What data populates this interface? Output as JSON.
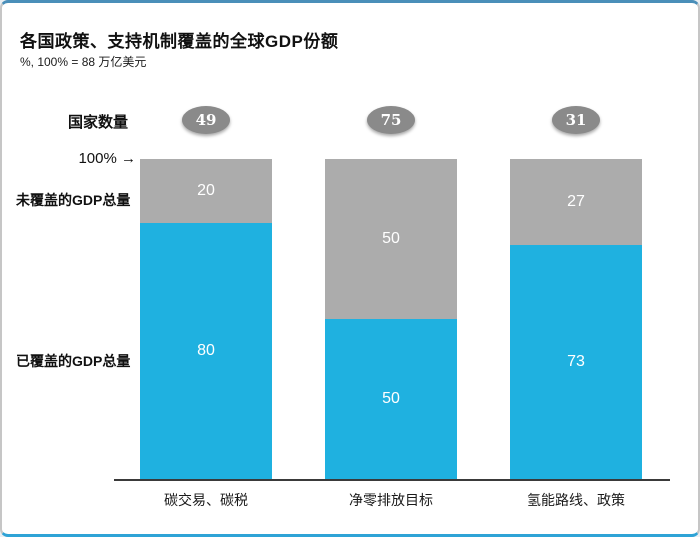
{
  "header": {
    "title": "各国政策、支持机制覆盖的全球GDP份额",
    "subtitle": "%, 100% = 88 万亿美元"
  },
  "countries": {
    "label": "国家数量"
  },
  "axis": {
    "top_label": "100%"
  },
  "side_labels": {
    "uncovered": "未覆盖的GDP总量",
    "covered": "已覆盖的GDP总量"
  },
  "colors": {
    "covered_blue": "#1FB1E0",
    "uncovered_gray": "#ACACAC",
    "badge_gray": "#8A8A8A",
    "axis_line": "#3A3A3A",
    "frame_top_border": "#4A8FB9",
    "frame_bottom_border": "#2FA3D6",
    "frame_side_border": "#C6C6C6"
  },
  "chart_data": {
    "type": "bar",
    "stacked": true,
    "title": "各国政策、支持机制覆盖的全球GDP份额",
    "subtitle": "%, 100% = 88 万亿美元",
    "categories": [
      "碳交易、碳税",
      "净零排放目标",
      "氢能路线、政策"
    ],
    "series": [
      {
        "name": "已覆盖的GDP总量",
        "role": "covered",
        "color": "#1FB1E0",
        "values": [
          80,
          50,
          73
        ]
      },
      {
        "name": "未覆盖的GDP总量",
        "role": "uncovered",
        "color": "#ACACAC",
        "values": [
          20,
          50,
          27
        ]
      }
    ],
    "country_counts": [
      49,
      75,
      31
    ],
    "xlabel": "",
    "ylabel": "",
    "ylim": [
      0,
      100
    ],
    "grid": false,
    "legend_position": "left"
  }
}
